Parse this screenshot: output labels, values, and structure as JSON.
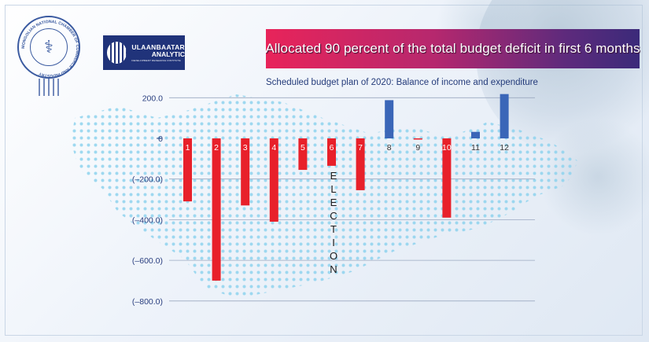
{
  "branding": {
    "seal_text": "MONGOLIAN NATIONAL CHAMBER OF COMMERCE AND INDUSTRY",
    "analytic_logo_line1": "ULAANBAATAR",
    "analytic_logo_line2": "ANALYTIC",
    "analytic_logo_line3": "DEVELOPMENT RESEARCH INSTITUTE"
  },
  "headline": "Allocated 90 percent of the total budget deficit in first 6 months",
  "chart_data": {
    "type": "bar",
    "title": "Scheduled budget plan of 2020: Balance of income and expenditure",
    "categories": [
      "1",
      "2",
      "3",
      "4",
      "5",
      "6",
      "7",
      "8",
      "9",
      "10",
      "11",
      "12"
    ],
    "values": [
      -310,
      -700,
      -330,
      -410,
      -155,
      -135,
      -255,
      188,
      -5,
      -390,
      32,
      218
    ],
    "ylim": [
      -800,
      200
    ],
    "yticks": [
      200,
      0,
      -200,
      -400,
      -600,
      -800
    ],
    "ytick_labels": [
      "200.0",
      "0",
      "(–200.0)",
      "(–400.0)",
      "(–600.0)",
      "(–800.0)"
    ],
    "negative_color": "#e8202a",
    "positive_color": "#3a66b8",
    "grid": true,
    "annotation": "ELECTION"
  }
}
